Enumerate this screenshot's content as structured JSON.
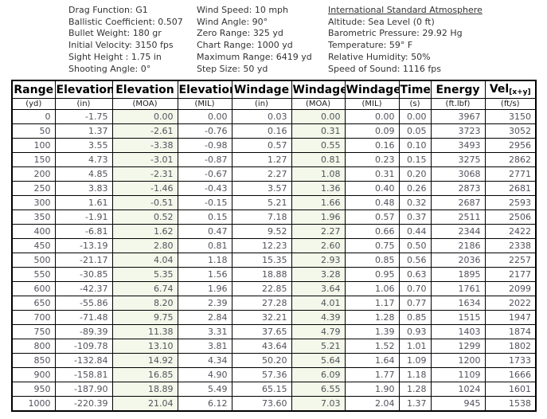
{
  "info_panel": {
    "columns": [
      {
        "lines": [
          "Drag Function: G1",
          "Ballistic Coefficient: 0.507",
          "Bullet Weight: 180 gr",
          "Initial Velocity: 3150 fps",
          "Sight Height : 1.75 in",
          "Shooting Angle: 0°"
        ]
      },
      {
        "lines": [
          "Wind Speed: 10 mph",
          "Wind Angle: 90°",
          "Zero Range: 325 yd",
          "Chart Range: 1000 yd",
          "Maximum Range: 6419 yd",
          "Step Size: 50 yd"
        ]
      },
      {
        "heading": "International Standard Atmosphere",
        "lines": [
          "Altitude: Sea Level (0 ft)",
          "Barometric Pressure: 29.92 Hg",
          "Temperature: 59° F",
          "Relative Humidity: 50%",
          "Speed of Sound: 1116 fps"
        ]
      }
    ]
  },
  "table": {
    "columns": [
      {
        "key": "range",
        "label": "Range",
        "unit": "(yd)"
      },
      {
        "key": "elevation-in",
        "label": "Elevation",
        "unit": "(in)"
      },
      {
        "key": "elevation-moa",
        "label": "Elevation",
        "unit": "(MOA)",
        "tinted": true
      },
      {
        "key": "elevation-mil",
        "label": "Elevation",
        "unit": "(MIL)"
      },
      {
        "key": "windage-in",
        "label": "Windage",
        "unit": "(in)"
      },
      {
        "key": "windage-moa",
        "label": "Windage",
        "unit": "(MOA)",
        "tinted": true
      },
      {
        "key": "windage-mil",
        "label": "Windage",
        "unit": "(MIL)"
      },
      {
        "key": "time",
        "label": "Time",
        "unit": "(s)"
      },
      {
        "key": "energy",
        "label": "Energy",
        "unit": "(ft.lbf)"
      },
      {
        "key": "velocity",
        "label": "Vel",
        "label_sub": "[x+y]",
        "unit": "(ft/s)"
      }
    ],
    "rows": [
      [
        "0",
        "-1.75",
        "0.00",
        "0.00",
        "0.03",
        "0.00",
        "0.00",
        "0.00",
        "3967",
        "3150"
      ],
      [
        "50",
        "1.37",
        "-2.61",
        "-0.76",
        "0.16",
        "0.31",
        "0.09",
        "0.05",
        "3723",
        "3052"
      ],
      [
        "100",
        "3.55",
        "-3.38",
        "-0.98",
        "0.57",
        "0.55",
        "0.16",
        "0.10",
        "3493",
        "2956"
      ],
      [
        "150",
        "4.73",
        "-3.01",
        "-0.87",
        "1.27",
        "0.81",
        "0.23",
        "0.15",
        "3275",
        "2862"
      ],
      [
        "200",
        "4.85",
        "-2.31",
        "-0.67",
        "2.27",
        "1.08",
        "0.31",
        "0.20",
        "3068",
        "2771"
      ],
      [
        "250",
        "3.83",
        "-1.46",
        "-0.43",
        "3.57",
        "1.36",
        "0.40",
        "0.26",
        "2873",
        "2681"
      ],
      [
        "300",
        "1.61",
        "-0.51",
        "-0.15",
        "5.21",
        "1.66",
        "0.48",
        "0.32",
        "2687",
        "2593"
      ],
      [
        "350",
        "-1.91",
        "0.52",
        "0.15",
        "7.18",
        "1.96",
        "0.57",
        "0.37",
        "2511",
        "2506"
      ],
      [
        "400",
        "-6.81",
        "1.62",
        "0.47",
        "9.52",
        "2.27",
        "0.66",
        "0.44",
        "2344",
        "2422"
      ],
      [
        "450",
        "-13.19",
        "2.80",
        "0.81",
        "12.23",
        "2.60",
        "0.75",
        "0.50",
        "2186",
        "2338"
      ],
      [
        "500",
        "-21.17",
        "4.04",
        "1.18",
        "15.35",
        "2.93",
        "0.85",
        "0.56",
        "2036",
        "2257"
      ],
      [
        "550",
        "-30.85",
        "5.35",
        "1.56",
        "18.88",
        "3.28",
        "0.95",
        "0.63",
        "1895",
        "2177"
      ],
      [
        "600",
        "-42.37",
        "6.74",
        "1.96",
        "22.85",
        "3.64",
        "1.06",
        "0.70",
        "1761",
        "2099"
      ],
      [
        "650",
        "-55.86",
        "8.20",
        "2.39",
        "27.28",
        "4.01",
        "1.17",
        "0.77",
        "1634",
        "2022"
      ],
      [
        "700",
        "-71.48",
        "9.75",
        "2.84",
        "32.21",
        "4.39",
        "1.28",
        "0.85",
        "1515",
        "1947"
      ],
      [
        "750",
        "-89.39",
        "11.38",
        "3.31",
        "37.65",
        "4.79",
        "1.39",
        "0.93",
        "1403",
        "1874"
      ],
      [
        "800",
        "-109.78",
        "13.10",
        "3.81",
        "43.64",
        "5.21",
        "1.52",
        "1.01",
        "1299",
        "1802"
      ],
      [
        "850",
        "-132.84",
        "14.92",
        "4.34",
        "50.20",
        "5.64",
        "1.64",
        "1.09",
        "1200",
        "1733"
      ],
      [
        "900",
        "-158.81",
        "16.85",
        "4.90",
        "57.36",
        "6.09",
        "1.77",
        "1.18",
        "1109",
        "1666"
      ],
      [
        "950",
        "-187.90",
        "18.89",
        "5.49",
        "65.15",
        "6.55",
        "1.90",
        "1.28",
        "1024",
        "1601"
      ],
      [
        "1000",
        "-220.39",
        "21.04",
        "6.12",
        "73.60",
        "7.03",
        "2.04",
        "1.37",
        "945",
        "1538"
      ]
    ]
  },
  "colors": {
    "moa_column_tint": "#f3f8ea",
    "table_border": "#000000",
    "data_text": "#52525c",
    "header_text": "#000000",
    "info_text": "#333333"
  }
}
